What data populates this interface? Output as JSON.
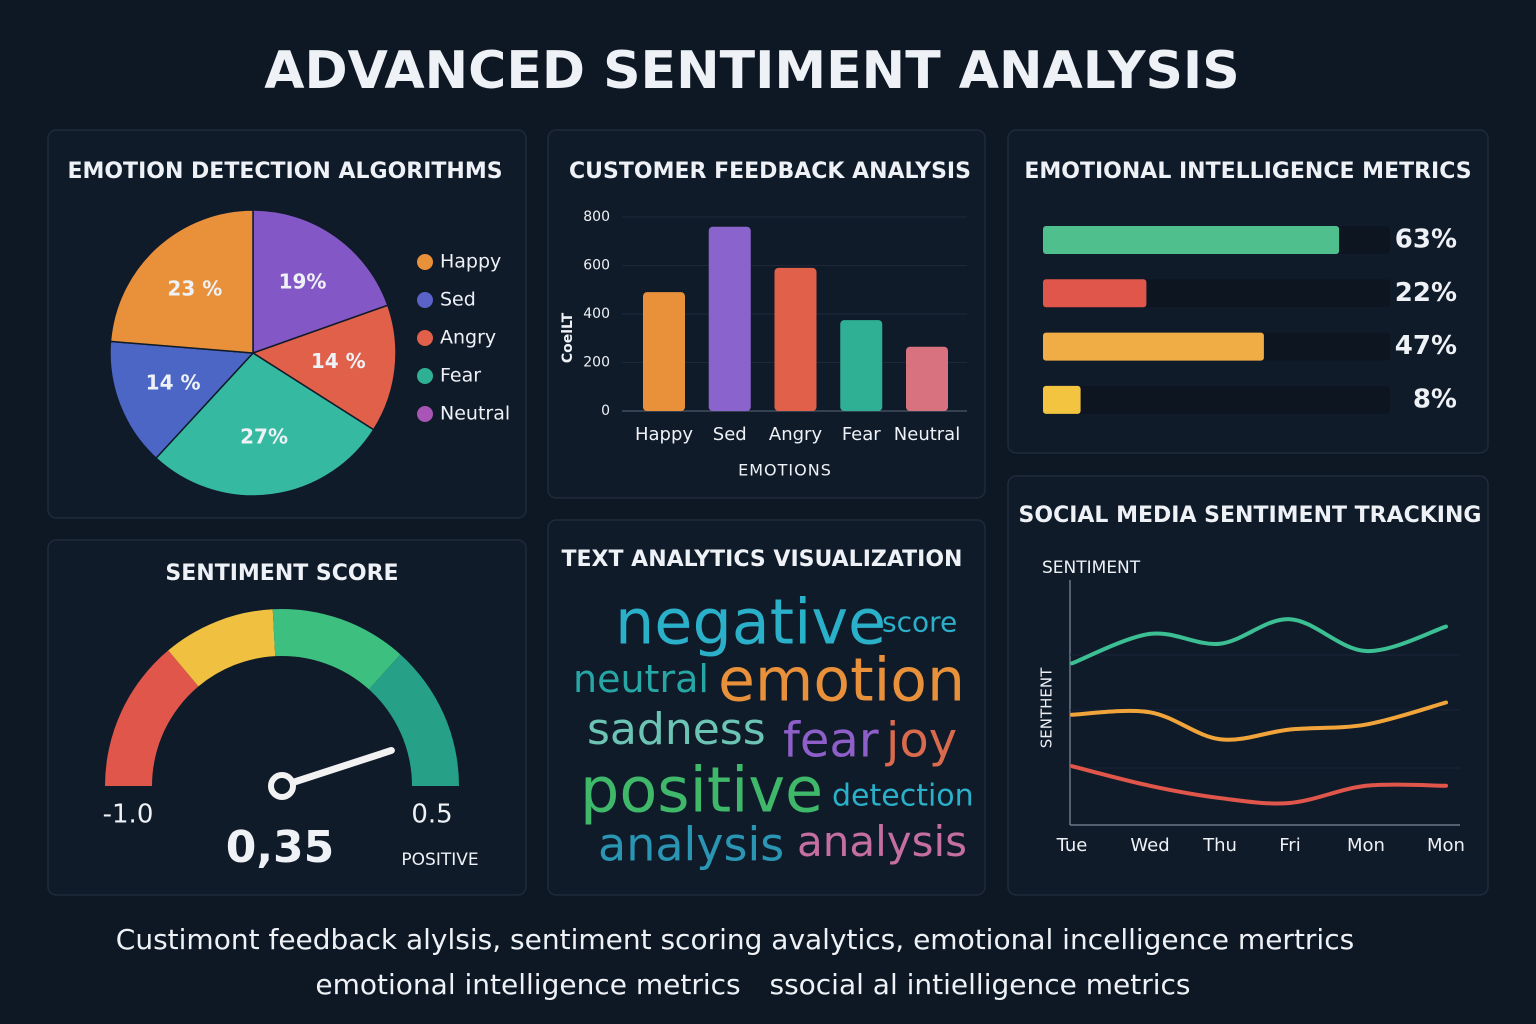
{
  "title": "ADVANCED SENTIMENT ANALYSIS",
  "chart_data": [
    {
      "type": "pie",
      "title": "EMOTION DETECTION ALGORITHMS",
      "values": [
        19,
        14,
        27,
        14,
        23
      ],
      "value_labels": [
        "19%",
        "14 %",
        "27%",
        "14 %",
        "23 %"
      ],
      "colors": [
        "#8457c6",
        "#e0604a",
        "#35b9a0",
        "#4b66c4",
        "#e8913a"
      ],
      "legend": [
        {
          "name": "Happy",
          "color": "#e8913a"
        },
        {
          "name": "Sed",
          "color": "#5b63c9"
        },
        {
          "name": "Angry",
          "color": "#e0604a"
        },
        {
          "name": "Fear",
          "color": "#2fb094"
        },
        {
          "name": "Neutral",
          "color": "#a855b5"
        }
      ]
    },
    {
      "type": "bar",
      "title": "CUSTOMER FEEDBACK ANALYSIS",
      "y_label": "CoelLT",
      "x_label": "EMOTIONS",
      "categories": [
        "Happy",
        "Sed",
        "Angry",
        "Fear",
        "Neutral"
      ],
      "values": [
        490,
        760,
        590,
        375,
        265
      ],
      "colors": [
        "#e8913a",
        "#8a64cc",
        "#e0604a",
        "#2fb094",
        "#d9727f"
      ],
      "ylim": [
        0,
        800
      ],
      "yticks": [
        0,
        200,
        400,
        600,
        800
      ],
      "grid": true
    },
    {
      "type": "hbar",
      "title": "EMOTIONAL INTELLIGENCE METRICS",
      "values": [
        63,
        22,
        47,
        8
      ],
      "value_labels": [
        "63%",
        "22%",
        "47%",
        "8%"
      ],
      "colors": [
        "#4fc08d",
        "#e0564a",
        "#f0ad45",
        "#f3c43f"
      ],
      "xlim": [
        0,
        100
      ]
    },
    {
      "type": "gauge",
      "title": "SENTIMENT SCORE",
      "value": 0.35,
      "value_label": "0,35",
      "label": "POSITIVE",
      "ticks": [
        {
          "value": -1,
          "label": "-1.0"
        },
        0.5
      ]
    },
    {
      "type": "wordcloud",
      "title": "TEXT ANALYTICS VISUALIZATION",
      "words": [
        {
          "text": "negative",
          "color": "#2ab0c8"
        },
        {
          "text": "score",
          "color": "#2ab0c8"
        },
        {
          "text": "neutral",
          "color": "#27a6a6"
        },
        {
          "text": "emotion",
          "color": "#e8913a"
        },
        {
          "text": "sadness",
          "color": "#6cc4b4"
        },
        {
          "text": "fear",
          "color": "#8e5fc9"
        },
        {
          "text": "joy",
          "color": "#d96a4d"
        },
        {
          "text": "positive",
          "color": "#3fb86a"
        },
        {
          "text": "detection",
          "color": "#2ab0c8"
        },
        {
          "text": "analysis",
          "color": "#2a96b4"
        },
        {
          "text": "analysis",
          "color": "#c56fa0"
        }
      ]
    },
    {
      "type": "line",
      "title": "SOCIAL MEDIA SENTIMENT TRACKING",
      "top_label": "SENTIMENT",
      "y_label": "SENTHENT",
      "categories": [
        "Tue",
        "Wed",
        "Thu",
        "Fri",
        "Mon",
        "Mon"
      ],
      "ylim": [
        0,
        10
      ],
      "series": [
        {
          "color": "#3dbf94",
          "values": [
            6.6,
            7.8,
            7.4,
            8.4,
            7.1,
            8.1
          ]
        },
        {
          "color": "#f0a43a",
          "values": [
            4.5,
            4.6,
            3.5,
            3.9,
            4.1,
            5.0
          ]
        },
        {
          "color": "#e0564a",
          "values": [
            2.4,
            1.6,
            1.1,
            0.9,
            1.6,
            1.6
          ]
        }
      ]
    }
  ],
  "footer": [
    "Custimont feedback alylsis, sentiment scoring avalytics, emotional incelligence mertrics",
    "emotional intelligence metrics",
    "ssocial al intielligence metrics"
  ]
}
